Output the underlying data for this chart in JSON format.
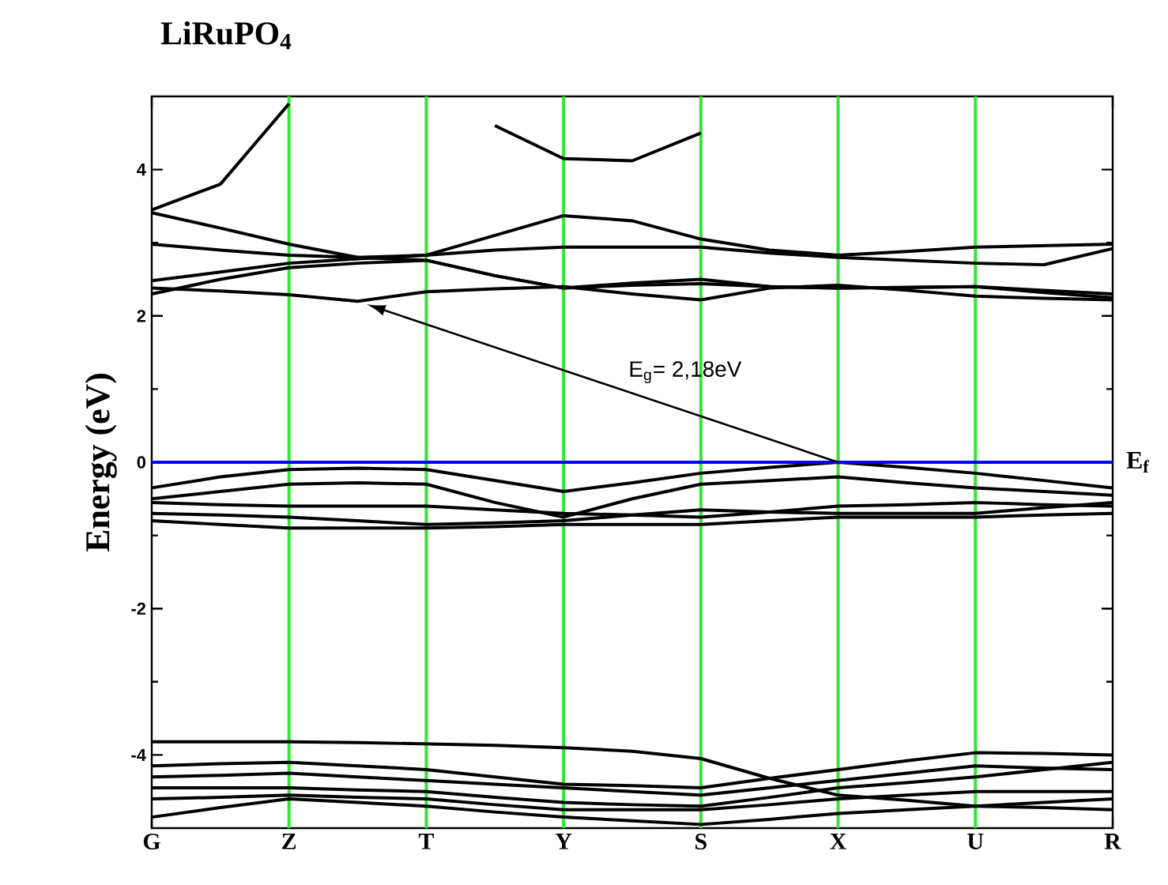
{
  "chart_data": {
    "type": "line",
    "title": "LiRuPO$_{4}$",
    "ylabel": "Energy (eV)",
    "categories": [
      "G",
      null,
      "Z",
      null,
      "T",
      null,
      "Y",
      null,
      "S",
      null,
      "X",
      null,
      "U",
      null,
      "R"
    ],
    "ylim": [
      -5,
      5
    ],
    "yticks": [
      -4,
      -2,
      0,
      2,
      4
    ],
    "marker": "none",
    "line_style": "solid",
    "ref_lines": [
      {
        "axis": "x",
        "value": "Z",
        "color": "#33e633"
      },
      {
        "axis": "x",
        "value": "T",
        "color": "#33e633"
      },
      {
        "axis": "x",
        "value": "Y",
        "color": "#33e633"
      },
      {
        "axis": "x",
        "value": "S",
        "color": "#33e633"
      },
      {
        "axis": "x",
        "value": "X",
        "color": "#33e633"
      },
      {
        "axis": "x",
        "value": "U",
        "color": "#33e633"
      },
      {
        "axis": "y",
        "value": 0,
        "label": "E$_{f}$",
        "color": "#0000ff"
      }
    ],
    "annotations": [
      "E$_{g}$= 2,18eV"
    ],
    "series": [
      {
        "color": "#000000",
        "values": [
          3.45,
          3.8,
          4.9,
          null,
          null,
          4.6,
          4.15,
          4.12,
          4.5,
          null,
          null,
          null,
          null,
          null,
          null
        ]
      },
      {
        "color": "#000000",
        "values": [
          3.41,
          3.2,
          2.98,
          2.8,
          2.83,
          3.1,
          3.37,
          3.3,
          3.05,
          2.9,
          2.83,
          2.88,
          2.94,
          2.96,
          2.98
        ]
      },
      {
        "color": "#000000",
        "values": [
          2.98,
          2.9,
          2.83,
          2.8,
          2.76,
          2.55,
          2.38,
          2.42,
          2.44,
          2.4,
          2.38,
          2.39,
          2.4,
          2.35,
          2.3
        ]
      },
      {
        "color": "#000000",
        "values": [
          2.48,
          2.6,
          2.72,
          2.78,
          2.83,
          2.9,
          2.94,
          2.94,
          2.94,
          2.86,
          2.8,
          2.76,
          2.72,
          2.7,
          2.92
        ]
      },
      {
        "color": "#000000",
        "values": [
          2.38,
          2.34,
          2.29,
          2.2,
          2.33,
          2.37,
          2.4,
          2.3,
          2.22,
          2.38,
          2.42,
          2.35,
          2.27,
          2.24,
          2.22
        ]
      },
      {
        "color": "#000000",
        "values": [
          2.3,
          2.5,
          2.66,
          2.72,
          2.76,
          2.55,
          2.38,
          2.45,
          2.5,
          2.4,
          2.38,
          2.39,
          2.4,
          2.32,
          2.25
        ]
      },
      {
        "color": "#000000",
        "values": [
          -0.35,
          -0.2,
          -0.1,
          -0.08,
          -0.1,
          -0.25,
          -0.4,
          -0.28,
          -0.15,
          -0.07,
          0,
          -0.07,
          -0.15,
          -0.25,
          -0.35
        ]
      },
      {
        "color": "#000000",
        "values": [
          -0.5,
          -0.4,
          -0.3,
          -0.28,
          -0.3,
          -0.55,
          -0.75,
          -0.5,
          -0.3,
          -0.25,
          -0.2,
          -0.28,
          -0.35,
          -0.4,
          -0.45
        ]
      },
      {
        "color": "#000000",
        "values": [
          -0.55,
          -0.58,
          -0.6,
          -0.6,
          -0.6,
          -0.65,
          -0.7,
          -0.72,
          -0.75,
          -0.68,
          -0.6,
          -0.58,
          -0.55,
          -0.58,
          -0.6
        ]
      },
      {
        "color": "#000000",
        "values": [
          -0.7,
          -0.72,
          -0.75,
          -0.8,
          -0.85,
          -0.83,
          -0.8,
          -0.72,
          -0.65,
          -0.68,
          -0.7,
          -0.7,
          -0.7,
          -0.62,
          -0.55
        ]
      },
      {
        "color": "#000000",
        "values": [
          -0.8,
          -0.85,
          -0.9,
          -0.9,
          -0.9,
          -0.88,
          -0.85,
          -0.85,
          -0.85,
          -0.8,
          -0.75,
          -0.75,
          -0.75,
          -0.72,
          -0.7
        ]
      },
      {
        "color": "#000000",
        "values": [
          -3.82,
          -3.82,
          -3.82,
          -3.83,
          -3.85,
          -3.87,
          -3.9,
          -3.95,
          -4.05,
          -4.32,
          -4.55,
          -4.62,
          -4.7,
          -4.72,
          -4.75
        ]
      },
      {
        "color": "#000000",
        "values": [
          -4.15,
          -4.12,
          -4.1,
          -4.15,
          -4.2,
          -4.3,
          -4.4,
          -4.42,
          -4.45,
          -4.32,
          -4.2,
          -4.08,
          -3.97,
          -3.98,
          -4.0
        ]
      },
      {
        "color": "#000000",
        "values": [
          -4.3,
          -4.28,
          -4.25,
          -4.3,
          -4.35,
          -4.4,
          -4.45,
          -4.5,
          -4.55,
          -4.45,
          -4.35,
          -4.25,
          -4.15,
          -4.18,
          -4.2
        ]
      },
      {
        "color": "#000000",
        "values": [
          -4.45,
          -4.45,
          -4.45,
          -4.48,
          -4.5,
          -4.58,
          -4.65,
          -4.68,
          -4.7,
          -4.58,
          -4.45,
          -4.38,
          -4.3,
          -4.2,
          -4.1
        ]
      },
      {
        "color": "#000000",
        "values": [
          -4.6,
          -4.58,
          -4.55,
          -4.58,
          -4.6,
          -4.68,
          -4.75,
          -4.75,
          -4.75,
          -4.68,
          -4.6,
          -4.55,
          -4.5,
          -4.5,
          -4.5
        ]
      },
      {
        "color": "#000000",
        "values": [
          -4.85,
          -4.72,
          -4.6,
          -4.65,
          -4.7,
          -4.78,
          -4.85,
          -4.9,
          -4.95,
          -4.88,
          -4.8,
          -4.75,
          -4.7,
          -4.65,
          -4.6
        ]
      }
    ]
  }
}
